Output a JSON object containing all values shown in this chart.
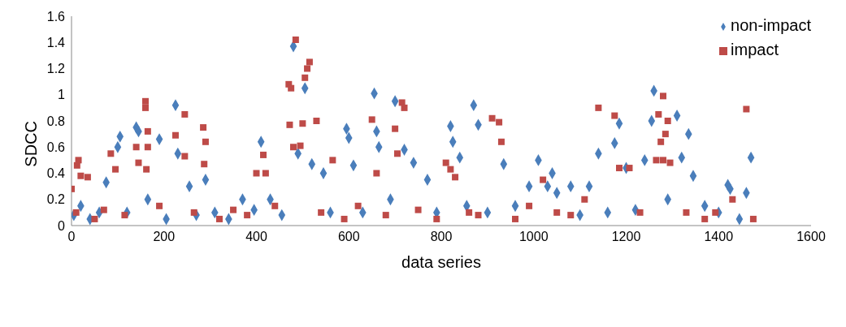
{
  "chart_data": {
    "type": "scatter",
    "xlabel": "data series",
    "ylabel": "SDCC",
    "xlim": [
      0,
      1600
    ],
    "xticks": [
      0,
      200,
      400,
      600,
      800,
      1000,
      1200,
      1400,
      1600
    ],
    "ylim": [
      0,
      1.6
    ],
    "yticks": [
      0,
      0.2,
      0.4,
      0.6,
      0.8,
      1,
      1.2,
      1.4,
      1.6
    ],
    "grid": false,
    "legend": "top right",
    "series": [
      {
        "name": "non-impact",
        "color": "#4a7ebb",
        "marker": "diamond",
        "x": [
          5,
          20,
          40,
          60,
          75,
          100,
          105,
          120,
          140,
          145,
          165,
          190,
          205,
          225,
          230,
          255,
          270,
          290,
          310,
          340,
          370,
          395,
          410,
          430,
          455,
          480,
          490,
          505,
          520,
          545,
          560,
          595,
          600,
          610,
          630,
          655,
          660,
          665,
          690,
          700,
          720,
          740,
          770,
          790,
          820,
          825,
          840,
          855,
          870,
          880,
          900,
          935,
          960,
          990,
          1010,
          1030,
          1040,
          1050,
          1080,
          1100,
          1120,
          1140,
          1160,
          1175,
          1185,
          1200,
          1220,
          1240,
          1255,
          1260,
          1290,
          1310,
          1320,
          1335,
          1345,
          1370,
          1400,
          1420,
          1425,
          1445,
          1460,
          1470
        ],
        "values": [
          0.08,
          0.15,
          0.05,
          0.1,
          0.33,
          0.6,
          0.68,
          0.1,
          0.75,
          0.72,
          0.2,
          0.66,
          0.05,
          0.92,
          0.55,
          0.3,
          0.08,
          0.35,
          0.1,
          0.05,
          0.2,
          0.12,
          0.64,
          0.2,
          0.08,
          1.37,
          0.55,
          1.05,
          0.47,
          0.4,
          0.1,
          0.74,
          0.67,
          0.46,
          0.1,
          1.01,
          0.72,
          0.6,
          0.2,
          0.95,
          0.58,
          0.48,
          0.35,
          0.1,
          0.76,
          0.64,
          0.52,
          0.15,
          0.92,
          0.77,
          0.1,
          0.47,
          0.15,
          0.3,
          0.5,
          0.3,
          0.4,
          0.25,
          0.3,
          0.08,
          0.3,
          0.55,
          0.1,
          0.63,
          0.78,
          0.44,
          0.12,
          0.5,
          0.8,
          1.03,
          0.2,
          0.84,
          0.52,
          0.7,
          0.38,
          0.15,
          0.1,
          0.31,
          0.28,
          0.05,
          0.25,
          0.52
        ]
      },
      {
        "name": "impact",
        "color": "#be4b48",
        "marker": "square",
        "x": [
          0,
          10,
          12,
          15,
          20,
          35,
          50,
          70,
          85,
          95,
          115,
          140,
          145,
          160,
          160,
          162,
          165,
          165,
          190,
          225,
          245,
          245,
          265,
          285,
          287,
          290,
          320,
          350,
          380,
          400,
          415,
          420,
          440,
          470,
          472,
          475,
          480,
          485,
          495,
          500,
          505,
          510,
          515,
          530,
          540,
          565,
          590,
          620,
          650,
          660,
          680,
          700,
          705,
          715,
          720,
          750,
          790,
          810,
          820,
          830,
          860,
          880,
          910,
          925,
          930,
          960,
          990,
          1020,
          1050,
          1080,
          1110,
          1140,
          1175,
          1185,
          1207,
          1230,
          1265,
          1270,
          1275,
          1280,
          1280,
          1285,
          1290,
          1295,
          1330,
          1370,
          1393,
          1430,
          1460,
          1475
        ],
        "values": [
          0.28,
          0.1,
          0.46,
          0.5,
          0.38,
          0.37,
          0.05,
          0.12,
          0.55,
          0.43,
          0.08,
          0.6,
          0.48,
          0.95,
          0.9,
          0.43,
          0.72,
          0.6,
          0.15,
          0.69,
          0.85,
          0.53,
          0.1,
          0.75,
          0.47,
          0.64,
          0.05,
          0.12,
          0.08,
          0.4,
          0.54,
          0.4,
          0.15,
          1.08,
          0.77,
          1.05,
          0.6,
          1.42,
          0.61,
          0.78,
          1.13,
          1.2,
          1.25,
          0.8,
          0.1,
          0.5,
          0.05,
          0.15,
          0.81,
          0.4,
          0.08,
          0.74,
          0.55,
          0.94,
          0.9,
          0.12,
          0.05,
          0.48,
          0.43,
          0.37,
          0.1,
          0.08,
          0.82,
          0.79,
          0.64,
          0.05,
          0.15,
          0.35,
          0.1,
          0.08,
          0.2,
          0.9,
          0.84,
          0.44,
          0.44,
          0.1,
          0.5,
          0.85,
          0.64,
          0.99,
          0.5,
          0.7,
          0.8,
          0.48,
          0.1,
          0.05,
          0.1,
          0.2,
          0.89,
          0.05
        ]
      }
    ]
  }
}
